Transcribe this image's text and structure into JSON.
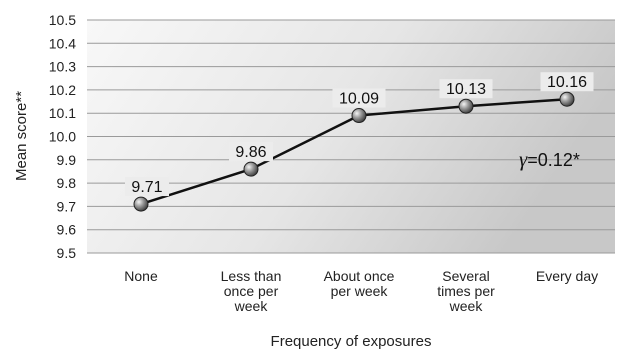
{
  "chart_data": {
    "type": "line",
    "categories": [
      [
        "None"
      ],
      [
        "Less than",
        "once per",
        "week"
      ],
      [
        "About once",
        "per week"
      ],
      [
        "Several",
        "times per",
        "week"
      ],
      [
        "Every day"
      ]
    ],
    "values": [
      9.71,
      9.86,
      10.09,
      10.13,
      10.16
    ],
    "data_labels": [
      "9.71",
      "9.86",
      "10.09",
      "10.13",
      "10.16"
    ],
    "xlabel": "Frequency of exposures",
    "ylabel": "Mean score**",
    "ylim": [
      9.5,
      10.5
    ],
    "yticks": [
      "9.5",
      "9.6",
      "9.7",
      "9.8",
      "9.9",
      "10.0",
      "10.1",
      "10.2",
      "10.3",
      "10.4",
      "10.5"
    ],
    "grid": true,
    "annotation": {
      "symbol": "γ",
      "text": "=0.12*"
    },
    "colors": {
      "line": "#111111",
      "grid": "#9a9a9a",
      "plot_bg_light": "#f7f7f7",
      "plot_bg_dark": "#c9c9c9",
      "marker": "#7a7a7a"
    }
  }
}
